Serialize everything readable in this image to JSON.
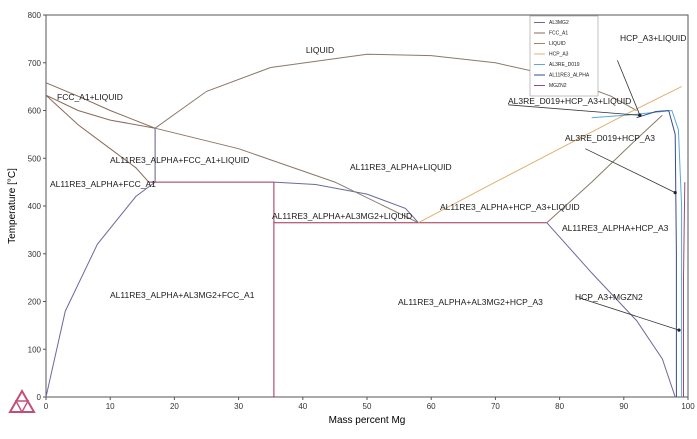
{
  "chart_data": {
    "type": "line",
    "xlabel": "Mass percent Mg",
    "ylabel": "Temperature [°C]",
    "xlim": [
      0,
      100
    ],
    "ylim": [
      0,
      800
    ],
    "x_ticks": [
      "0",
      "10",
      "20",
      "30",
      "40",
      "50",
      "60",
      "70",
      "80",
      "90",
      "100"
    ],
    "y_ticks": [
      "0",
      "100",
      "200",
      "300",
      "400",
      "500",
      "600",
      "700",
      "800"
    ],
    "grid": false,
    "legend_position": "top-right",
    "series": [
      {
        "name": "AL3MG2",
        "color": "#6a6a9a"
      },
      {
        "name": "FCC_A1",
        "color": "#8a6a5a"
      },
      {
        "name": "LIQUID",
        "color": "#9a8a6a"
      },
      {
        "name": "HCP_A3",
        "color": "#e0b070"
      },
      {
        "name": "AL3RE_D019",
        "color": "#5aa8d8"
      },
      {
        "name": "AL11RE3_ALPHA",
        "color": "#3a4a8a"
      },
      {
        "name": "MGZN2",
        "color": "#9a4a7a"
      }
    ],
    "annotations": [
      "LIQUID",
      "FCC_A1+LIQUID",
      "AL11RE3_ALPHA+FCC_A1+LIQUID",
      "AL11RE3_ALPHA+FCC_A1",
      "AL11RE3_ALPHA+LIQUID",
      "AL11RE3_ALPHA+AL3MG2+LIQUID",
      "AL11RE3_ALPHA+HCP_A3+LIQUID",
      "AL11RE3_ALPHA+HCP_A3",
      "AL11RE3_ALPHA+AL3MG2+FCC_A1",
      "AL11RE3_ALPHA+AL3MG2+HCP_A3",
      "HCP_A3+LIQUID",
      "AL3RE_D019+HCP_A3+LIQUID",
      "AL3RE_D019+HCP_A3",
      "HCP_A3+MGZN2"
    ],
    "curves": {
      "liquidus_main": {
        "color": "#8a7a6a",
        "points": [
          [
            17,
            563
          ],
          [
            25,
            640
          ],
          [
            35,
            690
          ],
          [
            50,
            718
          ],
          [
            60,
            715
          ],
          [
            70,
            700
          ],
          [
            80,
            670
          ],
          [
            88,
            630
          ],
          [
            92,
            600
          ]
        ]
      },
      "liquid_fcc_left": {
        "color": "#8a6a5a",
        "points": [
          [
            0,
            658
          ],
          [
            5,
            630
          ],
          [
            10,
            600
          ],
          [
            17,
            563
          ]
        ]
      },
      "fcc_liquid_lower": {
        "color": "#8a6a5a",
        "points": [
          [
            0,
            632
          ],
          [
            5,
            600
          ],
          [
            10,
            580
          ],
          [
            17,
            563
          ]
        ]
      },
      "fcc_solvus": {
        "color": "#8a6a5a",
        "points": [
          [
            0,
            632
          ],
          [
            5,
            570
          ],
          [
            10,
            520
          ],
          [
            14,
            480
          ],
          [
            16,
            450
          ]
        ]
      },
      "alpha_fcc_liq": {
        "color": "#6a5a7a",
        "points": [
          [
            17,
            563
          ],
          [
            17,
            450
          ]
        ]
      },
      "alpha_left_boundary": {
        "color": "#6a6aa0",
        "points": [
          [
            0,
            0
          ],
          [
            3,
            180
          ],
          [
            8,
            320
          ],
          [
            14,
            420
          ],
          [
            17,
            450
          ]
        ]
      },
      "eutectic_450": {
        "color": "#a03050",
        "points": [
          [
            16,
            450
          ],
          [
            35.5,
            450
          ]
        ]
      },
      "al3mg2_left": {
        "color": "#a03050",
        "points": [
          [
            35.5,
            450
          ],
          [
            35.5,
            0
          ]
        ]
      },
      "al3mg2_dome": {
        "color": "#6a6aa0",
        "points": [
          [
            35.5,
            450
          ],
          [
            42,
            445
          ],
          [
            50,
            425
          ],
          [
            56,
            395
          ],
          [
            58,
            365
          ]
        ]
      },
      "eutectic_365": {
        "color": "#a03050",
        "points": [
          [
            35.5,
            365
          ],
          [
            78,
            365
          ]
        ]
      },
      "alpha_liq_lower": {
        "color": "#8a7a6a",
        "points": [
          [
            17,
            563
          ],
          [
            30,
            520
          ],
          [
            45,
            450
          ],
          [
            58,
            365
          ]
        ]
      },
      "hcp_liquidus": {
        "color": "#e0b070",
        "points": [
          [
            58,
            365
          ],
          [
            70,
            450
          ],
          [
            80,
            520
          ],
          [
            90,
            590
          ],
          [
            99,
            650
          ]
        ]
      },
      "alpha_hcp_liq": {
        "color": "#8a7a6a",
        "points": [
          [
            78,
            365
          ],
          [
            85,
            450
          ],
          [
            92,
            540
          ],
          [
            96,
            590
          ]
        ]
      },
      "alpha_hcp_solvus": {
        "color": "#6a6aa0",
        "points": [
          [
            78,
            365
          ],
          [
            85,
            260
          ],
          [
            92,
            160
          ],
          [
            96,
            80
          ],
          [
            98,
            0
          ]
        ]
      },
      "d019_hcp_upper": {
        "color": "#5aa8d8",
        "points": [
          [
            85,
            585
          ],
          [
            92,
            592
          ],
          [
            96,
            598
          ],
          [
            97.5,
            600
          ],
          [
            98.5,
            560
          ],
          [
            99,
            400
          ],
          [
            99,
            0
          ]
        ]
      },
      "alpha_d019_hcp": {
        "color": "#3a4a8a",
        "points": [
          [
            92,
            585
          ],
          [
            95,
            598
          ],
          [
            97,
            600
          ],
          [
            98,
            550
          ],
          [
            98.2,
            300
          ],
          [
            98.2,
            0
          ]
        ]
      },
      "mgzn2": {
        "color": "#9a4a7a",
        "points": [
          [
            99.3,
            0
          ],
          [
            99.3,
            250
          ],
          [
            99.5,
            450
          ]
        ]
      },
      "pointer_hcp_liq": {
        "color": "#333333",
        "points": [
          [
            89,
            705
          ],
          [
            92.5,
            590
          ]
        ]
      },
      "pointer_d019_hcp_liq": {
        "color": "#333333",
        "points": [
          [
            72,
            612
          ],
          [
            92.5,
            590
          ]
        ]
      },
      "pointer_d019_hcp": {
        "color": "#333333",
        "points": [
          [
            84,
            520
          ],
          [
            98,
            428
          ]
        ]
      },
      "pointer_hcp_mgzn2": {
        "color": "#333333",
        "points": [
          [
            83,
            208
          ],
          [
            98.6,
            140
          ]
        ]
      }
    }
  },
  "legend": {
    "items": [
      {
        "label": "AL3MG2",
        "color": "#6a6a9a"
      },
      {
        "label": "FCC_A1",
        "color": "#8a6a5a"
      },
      {
        "label": "LIQUID",
        "color": "#9a8a6a"
      },
      {
        "label": "HCP_A3",
        "color": "#e0b070"
      },
      {
        "label": "AL3RE_D019",
        "color": "#5aa8d8"
      },
      {
        "label": "AL11RE3_ALPHA",
        "color": "#3a4a8a"
      },
      {
        "label": "MGZN2",
        "color": "#9a4a7a"
      }
    ]
  },
  "logo": {
    "name": "thermo-calc-logo",
    "color": "#c0507a"
  }
}
